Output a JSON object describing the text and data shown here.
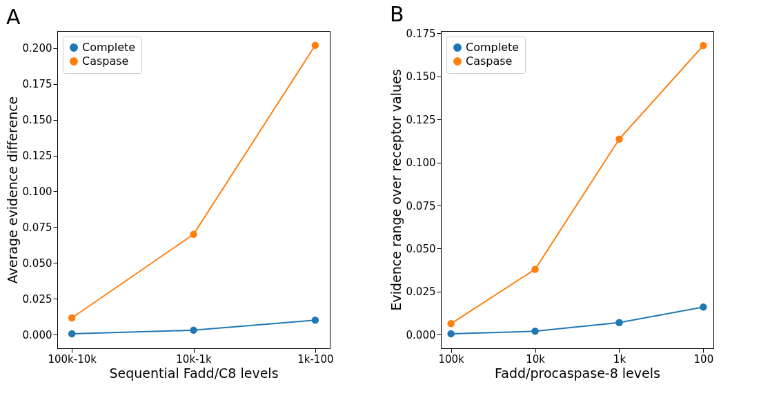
{
  "chart_data": [
    {
      "type": "line",
      "title": "A",
      "xlabel": "Sequential Fadd/C8 levels",
      "ylabel": "Average evidence difference",
      "categories": [
        "100k-10k",
        "10k-1k",
        "1k-100"
      ],
      "series": [
        {
          "name": "Complete",
          "color": "#1f77b4",
          "values": [
            0.0005,
            0.003,
            0.01
          ]
        },
        {
          "name": "Caspase",
          "color": "#ff7f0e",
          "values": [
            0.0116,
            0.07,
            0.202
          ]
        }
      ],
      "ylim": [
        -0.0096,
        0.212
      ],
      "yticks": [
        {
          "value": 0,
          "label": "0.000"
        },
        {
          "value": 0.025,
          "label": "0.025"
        },
        {
          "value": 0.05,
          "label": "0.050"
        },
        {
          "value": 0.075,
          "label": "0.075"
        },
        {
          "value": 0.1,
          "label": "0.100"
        },
        {
          "value": 0.125,
          "label": "0.125"
        },
        {
          "value": 0.15,
          "label": "0.150"
        },
        {
          "value": 0.175,
          "label": "0.175"
        },
        {
          "value": 0.2,
          "label": "0.200"
        }
      ],
      "legend": "top left",
      "marker": "circle",
      "line_style": "solid"
    },
    {
      "type": "line",
      "title": "B",
      "xlabel": "Fadd/procaspase-8 levels",
      "ylabel": "Evidence range over receptor values",
      "categories": [
        "100k",
        "10k",
        "1k",
        "100"
      ],
      "series": [
        {
          "name": "Complete",
          "color": "#1f77b4",
          "values": [
            0.0005,
            0.002,
            0.007,
            0.016
          ]
        },
        {
          "name": "Caspase",
          "color": "#ff7f0e",
          "values": [
            0.0064,
            0.038,
            0.1136,
            0.168
          ]
        }
      ],
      "ylim": [
        -0.0079,
        0.1764
      ],
      "yticks": [
        {
          "value": 0,
          "label": "0.000"
        },
        {
          "value": 0.025,
          "label": "0.025"
        },
        {
          "value": 0.05,
          "label": "0.050"
        },
        {
          "value": 0.075,
          "label": "0.075"
        },
        {
          "value": 0.1,
          "label": "0.100"
        },
        {
          "value": 0.125,
          "label": "0.125"
        },
        {
          "value": 0.15,
          "label": "0.150"
        },
        {
          "value": 0.175,
          "label": "0.175"
        }
      ],
      "legend": "top left",
      "marker": "circle",
      "line_style": "solid"
    }
  ]
}
